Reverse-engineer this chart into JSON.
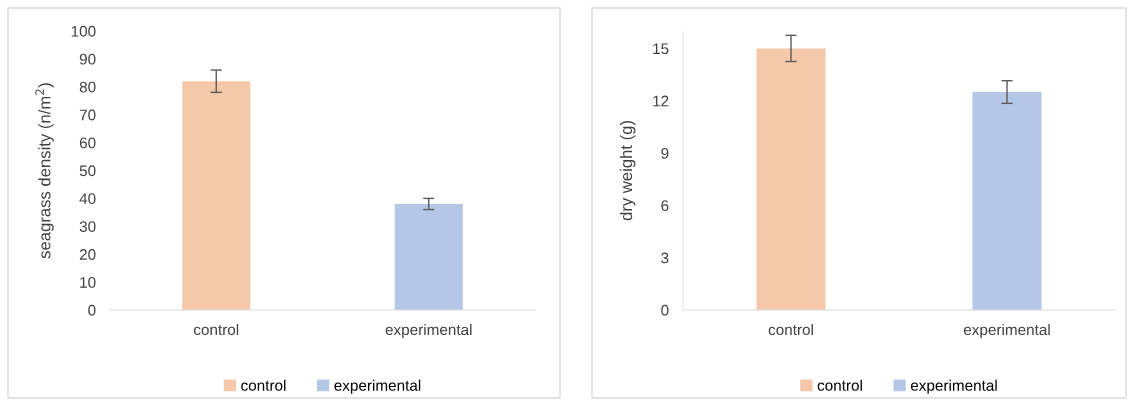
{
  "chart_data": [
    {
      "type": "bar",
      "ylabel": "seagrass density (n/m$^{2}$)",
      "categories": [
        "control",
        "experimental"
      ],
      "ylim": [
        0,
        100
      ],
      "yticks": [
        0,
        10,
        20,
        30,
        40,
        50,
        60,
        70,
        80,
        90,
        100
      ],
      "legend": "bottom",
      "series": [
        {
          "name": "control",
          "color": "#f6c8aa",
          "values": [
            82,
            null
          ],
          "errors": [
            4,
            null
          ]
        },
        {
          "name": "experimental",
          "color": "#b4c7e7",
          "values": [
            null,
            38
          ],
          "errors": [
            null,
            2
          ]
        }
      ]
    },
    {
      "type": "bar",
      "ylabel": "dry weight (g)",
      "categories": [
        "control",
        "experimental"
      ],
      "ylim": [
        0,
        16
      ],
      "yticks": [
        0,
        3,
        6,
        9,
        12,
        15
      ],
      "legend": "bottom",
      "series": [
        {
          "name": "control",
          "color": "#f6c8aa",
          "values": [
            15,
            null
          ],
          "errors": [
            0.75,
            null
          ]
        },
        {
          "name": "experimental",
          "color": "#b4c7e7",
          "values": [
            null,
            12.5
          ],
          "errors": [
            null,
            0.65
          ]
        }
      ]
    }
  ]
}
